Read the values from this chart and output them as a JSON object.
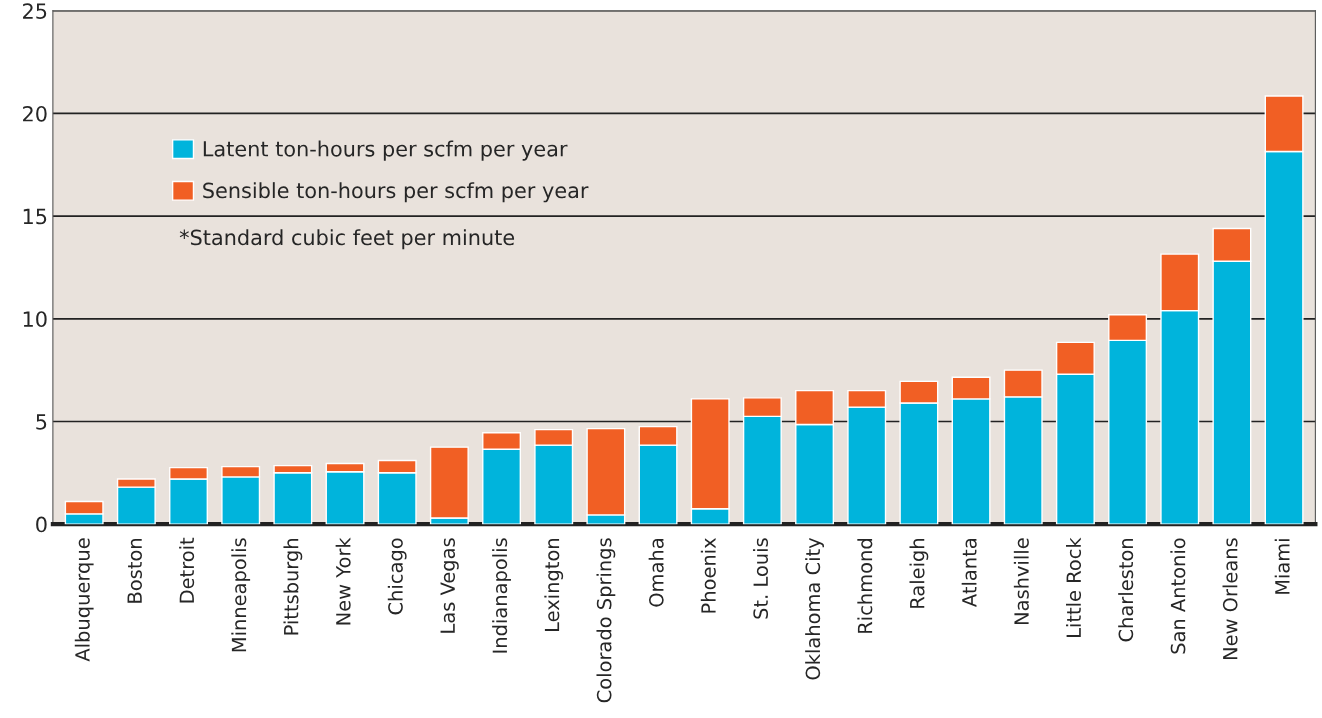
{
  "chart_data": {
    "type": "bar",
    "stacked": true,
    "categories": [
      "Albuquerque",
      "Boston",
      "Detroit",
      "Minneapolis",
      "Pittsburgh",
      "New York",
      "Chicago",
      "Las Vegas",
      "Indianapolis",
      "Lexington",
      "Colorado Springs",
      "Omaha",
      "Phoenix",
      "St. Louis",
      "Oklahoma City",
      "Richmond",
      "Raleigh",
      "Atlanta",
      "Nashville",
      "Little Rock",
      "Charleston",
      "San Antonio",
      "New Orleans",
      "Miami"
    ],
    "series": [
      {
        "name": "Latent ton-hours per scfm per year",
        "color": "#00b4dc",
        "values": [
          0.5,
          1.8,
          2.2,
          2.3,
          2.5,
          2.55,
          2.5,
          0.3,
          3.65,
          3.85,
          0.45,
          3.85,
          0.75,
          5.25,
          4.85,
          5.7,
          5.9,
          6.1,
          6.2,
          7.3,
          8.95,
          10.4,
          12.8,
          18.15
        ]
      },
      {
        "name": "Sensible ton-hours per scfm per year",
        "color": "#f15f24",
        "values": [
          0.6,
          0.4,
          0.55,
          0.5,
          0.35,
          0.4,
          0.6,
          3.45,
          0.8,
          0.75,
          4.2,
          0.9,
          5.35,
          0.9,
          1.65,
          0.8,
          1.05,
          1.05,
          1.3,
          1.55,
          1.25,
          2.75,
          1.6,
          2.7
        ]
      }
    ],
    "ylim": [
      0,
      25
    ],
    "yticks": [
      0,
      5,
      10,
      15,
      20,
      25
    ],
    "grid": "y",
    "legend": "top left",
    "annotations": [
      "*Standard cubic feet per minute"
    ]
  }
}
